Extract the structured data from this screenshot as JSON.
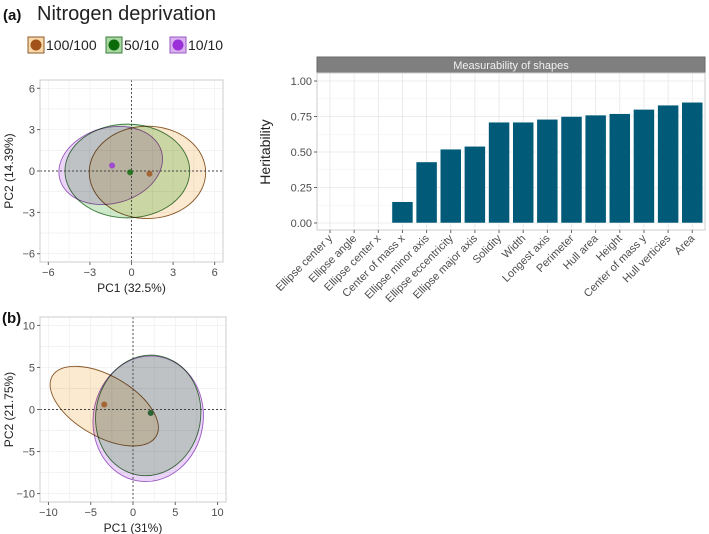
{
  "panel_a_label": "(a)",
  "panel_b_label": "(b)",
  "title": "Nitrogen deprivation",
  "legend": [
    {
      "label": "100/100",
      "color": "#a0521a",
      "fill": "#f8d8a8",
      "stroke": "#8a5a2a"
    },
    {
      "label": "50/10",
      "color": "#0b6b0b",
      "fill": "#a8d8a0",
      "stroke": "#3d7a3d"
    },
    {
      "label": "10/10",
      "color": "#9a30d8",
      "fill": "#d8b0f0",
      "stroke": "#9a5ac0"
    }
  ],
  "chart_data": [
    {
      "type": "scatter",
      "panel": "(a)",
      "xlabel": "PC1 (32.5%)",
      "ylabel": "PC2 (14.39%)",
      "xlim": [
        -6.6,
        6.6
      ],
      "ylim": [
        -6.6,
        6.6
      ],
      "xticks": [
        -6,
        -3,
        0,
        3,
        6
      ],
      "yticks": [
        -6,
        -3,
        0,
        3,
        6
      ],
      "xtick_labels": [
        "−6",
        "−3",
        "0",
        "3",
        "6"
      ],
      "ytick_labels": [
        "−6",
        "−3",
        "0",
        "3",
        "6"
      ],
      "grid": true,
      "groups": [
        {
          "name": "100/100",
          "mean": [
            1.3,
            -0.2
          ],
          "ellipse": {
            "cx": 1.15,
            "cy": -0.1,
            "rx": 4.2,
            "ry": 3.35,
            "angle": 0
          }
        },
        {
          "name": "50/10",
          "mean": [
            -0.1,
            -0.1
          ],
          "ellipse": {
            "cx": -0.3,
            "cy": 0.0,
            "rx": 4.5,
            "ry": 3.4,
            "angle": 0
          }
        },
        {
          "name": "10/10",
          "mean": [
            -1.4,
            0.4
          ],
          "ellipse": {
            "cx": -1.5,
            "cy": 0.4,
            "rx": 3.8,
            "ry": 2.75,
            "angle": -15
          }
        }
      ]
    },
    {
      "type": "bar",
      "title": "Measurability of shapes",
      "xlabel": "",
      "ylabel": "Heritability",
      "ylim": [
        0,
        1.05
      ],
      "yticks": [
        0,
        0.25,
        0.5,
        0.75,
        1.0
      ],
      "ytick_labels": [
        "0.00",
        "0.25",
        "0.50",
        "0.75",
        "1.00"
      ],
      "grid": true,
      "color": "#005a78",
      "categories": [
        "Ellipse center y",
        "Ellipse angle",
        "Ellipse center x",
        "Center of mass x",
        "Ellipse minor axis",
        "Ellipse eccentricity",
        "Ellipse major axis",
        "Solidity",
        "Width",
        "Longest axis",
        "Perimeter",
        "Hull area",
        "Height",
        "Center of mass y",
        "Hull verticies",
        "Area"
      ],
      "values": [
        0,
        0,
        0,
        0.15,
        0.43,
        0.52,
        0.54,
        0.71,
        0.71,
        0.73,
        0.75,
        0.76,
        0.77,
        0.8,
        0.83,
        0.85
      ]
    },
    {
      "type": "scatter",
      "panel": "(b)",
      "xlabel": "PC1 (31%)",
      "ylabel": "PC2 (21.75%)",
      "xlim": [
        -11,
        11
      ],
      "ylim": [
        -11,
        11
      ],
      "xticks": [
        -10,
        -5,
        0,
        5,
        10
      ],
      "yticks": [
        -10,
        -5,
        0,
        5,
        10
      ],
      "xtick_labels": [
        "−10",
        "−5",
        "0",
        "5",
        "10"
      ],
      "ytick_labels": [
        "−10",
        "−5",
        "0",
        "5",
        "10"
      ],
      "grid": true,
      "groups": [
        {
          "name": "10/10",
          "mean": [
            2.1,
            -0.4
          ],
          "ellipse": {
            "cx": 1.8,
            "cy": -1.1,
            "rx": 6.5,
            "ry": 7.5,
            "angle": 10
          }
        },
        {
          "name": "50/10",
          "mean": [
            2.1,
            -0.4
          ],
          "ellipse": {
            "cx": 1.8,
            "cy": -0.7,
            "rx": 6.2,
            "ry": 7.2,
            "angle": 10
          }
        },
        {
          "name": "100/100",
          "mean": [
            -3.4,
            0.6
          ],
          "ellipse": {
            "cx": -3.4,
            "cy": 0.4,
            "rx": 7.1,
            "ry": 3.6,
            "angle": 30
          }
        }
      ]
    }
  ]
}
